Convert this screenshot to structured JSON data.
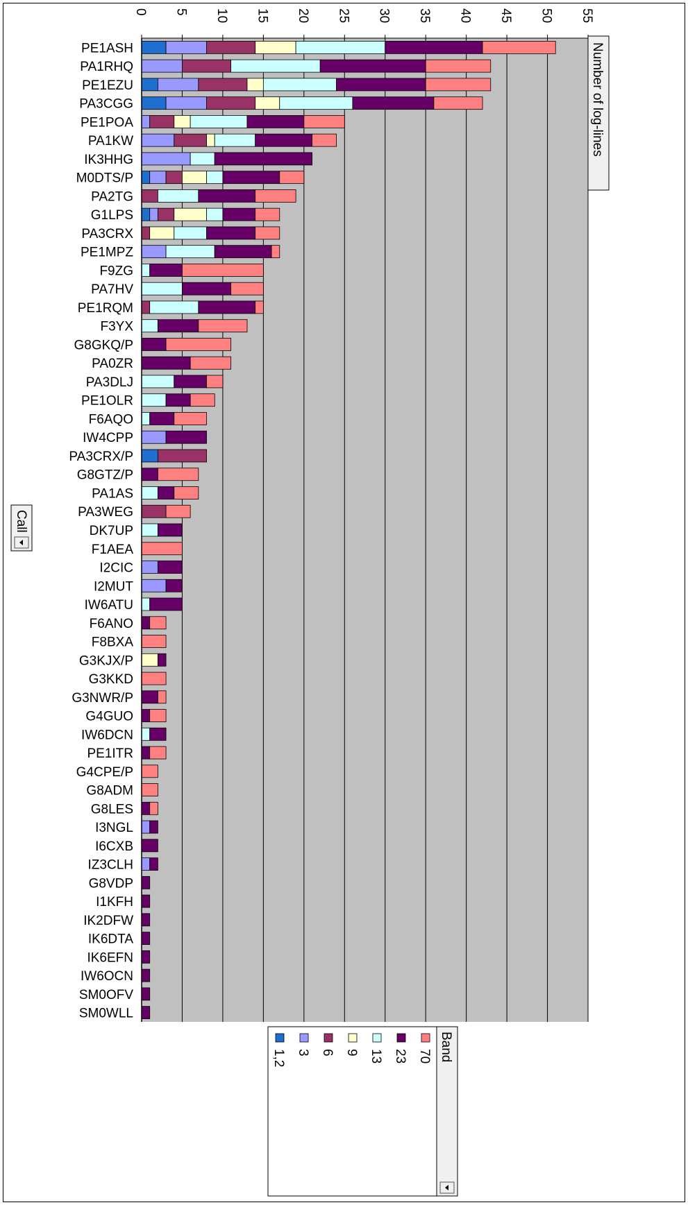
{
  "chart_data": {
    "type": "bar",
    "orientation": "horizontal",
    "stacked": true,
    "title": "",
    "xlabel": "Number of log-lines",
    "ylabel": "Call",
    "xlim": [
      0,
      55
    ],
    "xticks": [
      0,
      5,
      10,
      15,
      20,
      25,
      30,
      35,
      40,
      45,
      50,
      55
    ],
    "grid": true,
    "legend_title": "Band",
    "legend_position": "bottom",
    "categories": [
      "PE1ASH",
      "PA1RHQ",
      "PE1EZU",
      "PA3CGG",
      "PE1POA",
      "PA1KW",
      "IK3HHG",
      "M0DTS/P",
      "PA2TG",
      "G1LPS",
      "PA3CRX",
      "PE1MPZ",
      "F9ZG",
      "PA7HV",
      "PE1RQM",
      "F3YX",
      "G8GKQ/P",
      "PA0ZR",
      "PA3DLJ",
      "PE1OLR",
      "F6AQO",
      "IW4CPP",
      "PA3CRX/P",
      "G8GTZ/P",
      "PA1AS",
      "PA3WEG",
      "DK7UP",
      "F1AEA",
      "I2CIC",
      "I2MUT",
      "IW6ATU",
      "F6ANO",
      "F8BXA",
      "G3KJX/P",
      "G3KKD",
      "G3NWR/P",
      "G4GUO",
      "IW6DCN",
      "PE1ITR",
      "G4CPE/P",
      "G8ADM",
      "G8LES",
      "I3NGL",
      "I6CXB",
      "IZ3CLH",
      "G8VDP",
      "I1KFH",
      "IK2DFW",
      "IK6DTA",
      "IK6EFN",
      "IW6OCN",
      "SM0OFV",
      "SM0WLL"
    ],
    "series": [
      {
        "name": "1,2",
        "color": "#1f6fd0",
        "values": [
          3,
          0,
          2,
          3,
          0,
          0,
          0,
          1,
          0,
          1,
          0,
          0,
          0,
          0,
          0,
          0,
          0,
          0,
          0,
          0,
          0,
          0,
          2,
          0,
          0,
          0,
          0,
          0,
          0,
          0,
          0,
          0,
          0,
          0,
          0,
          0,
          0,
          0,
          0,
          0,
          0,
          0,
          0,
          0,
          0,
          0,
          0,
          0,
          0,
          0,
          0,
          0,
          0
        ]
      },
      {
        "name": "3",
        "color": "#9999ff",
        "values": [
          5,
          5,
          5,
          5,
          1,
          4,
          6,
          2,
          0,
          1,
          0,
          3,
          0,
          0,
          0,
          0,
          0,
          0,
          0,
          0,
          0,
          3,
          0,
          0,
          0,
          0,
          0,
          0,
          2,
          3,
          0,
          0,
          0,
          0,
          0,
          0,
          0,
          0,
          0,
          0,
          0,
          0,
          1,
          0,
          1,
          0,
          0,
          0,
          0,
          0,
          0,
          0,
          0
        ]
      },
      {
        "name": "6",
        "color": "#993366",
        "values": [
          6,
          6,
          6,
          6,
          3,
          4,
          0,
          2,
          2,
          2,
          1,
          0,
          0,
          0,
          1,
          0,
          0,
          0,
          0,
          0,
          0,
          0,
          6,
          0,
          0,
          3,
          0,
          0,
          0,
          0,
          0,
          0,
          0,
          0,
          0,
          0,
          0,
          0,
          0,
          0,
          0,
          0,
          0,
          0,
          0,
          0,
          0,
          0,
          0,
          0,
          0,
          0,
          0
        ]
      },
      {
        "name": "9",
        "color": "#ffffcc",
        "values": [
          5,
          0,
          2,
          3,
          2,
          1,
          0,
          3,
          0,
          4,
          3,
          0,
          0,
          0,
          0,
          0,
          0,
          0,
          0,
          0,
          0,
          0,
          0,
          0,
          0,
          0,
          0,
          0,
          0,
          0,
          0,
          0,
          0,
          2,
          0,
          0,
          0,
          0,
          0,
          0,
          0,
          0,
          0,
          0,
          0,
          0,
          0,
          0,
          0,
          0,
          0,
          0,
          0
        ]
      },
      {
        "name": "13",
        "color": "#ccffff",
        "values": [
          11,
          11,
          9,
          9,
          7,
          5,
          3,
          2,
          5,
          2,
          4,
          6,
          1,
          5,
          6,
          2,
          0,
          0,
          4,
          3,
          1,
          0,
          0,
          0,
          2,
          0,
          2,
          0,
          0,
          0,
          1,
          0,
          0,
          0,
          0,
          0,
          0,
          1,
          0,
          0,
          0,
          0,
          0,
          0,
          0,
          0,
          0,
          0,
          0,
          0,
          0,
          0,
          0
        ]
      },
      {
        "name": "23",
        "color": "#660066",
        "values": [
          12,
          13,
          11,
          10,
          7,
          7,
          12,
          7,
          7,
          4,
          6,
          7,
          4,
          6,
          7,
          5,
          3,
          6,
          4,
          3,
          3,
          5,
          0,
          2,
          2,
          0,
          3,
          0,
          3,
          2,
          4,
          1,
          0,
          1,
          0,
          2,
          1,
          2,
          1,
          0,
          0,
          1,
          1,
          2,
          1,
          1,
          1,
          1,
          1,
          1,
          1,
          1,
          1
        ]
      },
      {
        "name": "70",
        "color": "#ff8080",
        "values": [
          9,
          8,
          8,
          6,
          5,
          3,
          0,
          3,
          5,
          3,
          3,
          1,
          10,
          4,
          1,
          6,
          8,
          5,
          2,
          3,
          4,
          0,
          0,
          5,
          3,
          3,
          0,
          5,
          0,
          0,
          0,
          2,
          3,
          0,
          3,
          1,
          2,
          0,
          2,
          2,
          2,
          1,
          0,
          0,
          0,
          0,
          0,
          0,
          0,
          0,
          0,
          0,
          0
        ]
      }
    ]
  }
}
